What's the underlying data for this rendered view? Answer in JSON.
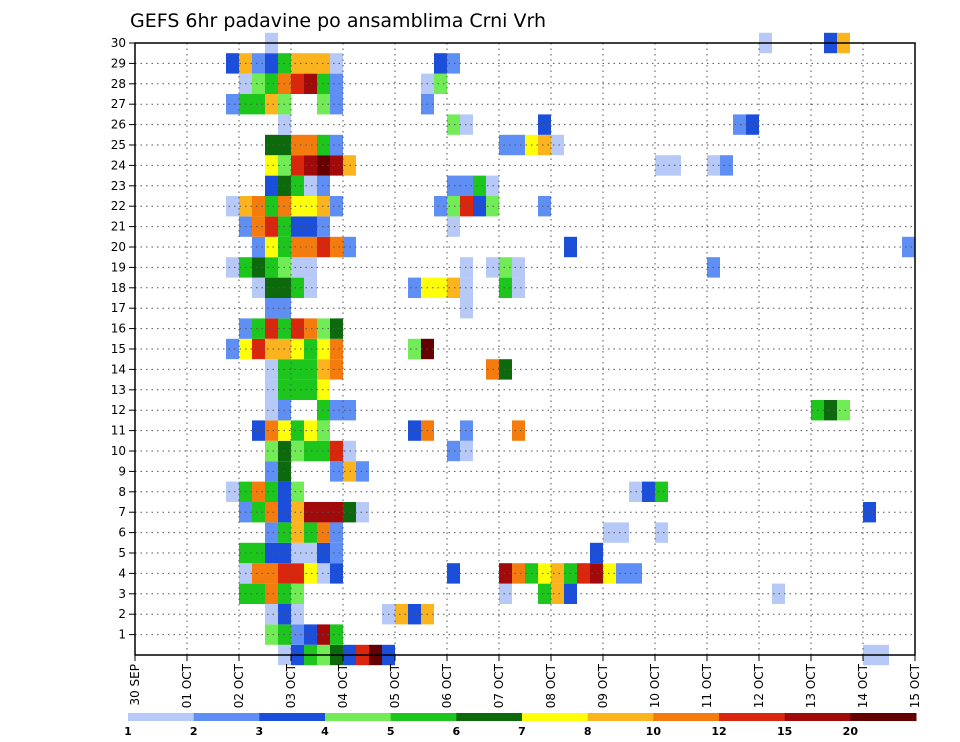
{
  "chart_data": {
    "type": "heatmap",
    "title": "GEFS 6hr padavine po ansamblima Crni Vrh",
    "xlabel": "",
    "ylabel": "",
    "x_tick_labels": [
      "30 SEP",
      "01 OCT",
      "02 OCT",
      "03 OCT",
      "04 OCT",
      "05 OCT",
      "06 OCT",
      "07 OCT",
      "08 OCT",
      "09 OCT",
      "10 OCT",
      "11 OCT",
      "12 OCT",
      "13 OCT",
      "14 OCT",
      "15 OCT"
    ],
    "x_unit": "6-hour step from 30 SEP",
    "xlim": [
      0,
      60
    ],
    "y_tick_labels": [
      "1",
      "2",
      "3",
      "4",
      "5",
      "6",
      "7",
      "8",
      "9",
      "10",
      "11",
      "12",
      "13",
      "14",
      "15",
      "16",
      "17",
      "18",
      "19",
      "20",
      "21",
      "22",
      "23",
      "24",
      "25",
      "26",
      "27",
      "28",
      "29",
      "30"
    ],
    "ylim": [
      0,
      30
    ],
    "grid": true,
    "colorbar": {
      "labels": [
        "1",
        "2",
        "3",
        "4",
        "5",
        "6",
        "7",
        "8",
        "10",
        "12",
        "15",
        "20"
      ],
      "colors": [
        "#b7c9f7",
        "#5f8ef4",
        "#1a4edb",
        "#72ec56",
        "#1dc61d",
        "#0c6a0c",
        "#ffff0a",
        "#fbb41d",
        "#f47c0e",
        "#db260e",
        "#a00a0a",
        "#650000"
      ]
    },
    "cells": [
      [
        11,
        0,
        0
      ],
      [
        12,
        0,
        2
      ],
      [
        13,
        0,
        4
      ],
      [
        14,
        0,
        3
      ],
      [
        15,
        0,
        5
      ],
      [
        16,
        0,
        2
      ],
      [
        17,
        0,
        9
      ],
      [
        18,
        0,
        11
      ],
      [
        19,
        0,
        2
      ],
      [
        56,
        0,
        0
      ],
      [
        57,
        0,
        0
      ],
      [
        10,
        1,
        3
      ],
      [
        11,
        1,
        4
      ],
      [
        12,
        1,
        1
      ],
      [
        13,
        1,
        2
      ],
      [
        14,
        1,
        10
      ],
      [
        15,
        1,
        4
      ],
      [
        10,
        2,
        0
      ],
      [
        11,
        2,
        2
      ],
      [
        12,
        2,
        0
      ],
      [
        19,
        2,
        0
      ],
      [
        20,
        2,
        7
      ],
      [
        21,
        2,
        2
      ],
      [
        22,
        2,
        7
      ],
      [
        8,
        3,
        4
      ],
      [
        9,
        3,
        4
      ],
      [
        10,
        3,
        8
      ],
      [
        11,
        3,
        4
      ],
      [
        12,
        3,
        3
      ],
      [
        28,
        3,
        0
      ],
      [
        31,
        3,
        4
      ],
      [
        32,
        3,
        7
      ],
      [
        33,
        3,
        2
      ],
      [
        49,
        3,
        0
      ],
      [
        8,
        4,
        0
      ],
      [
        9,
        4,
        8
      ],
      [
        10,
        4,
        8
      ],
      [
        11,
        4,
        9
      ],
      [
        12,
        4,
        9
      ],
      [
        13,
        4,
        6
      ],
      [
        14,
        4,
        0
      ],
      [
        15,
        4,
        2
      ],
      [
        24,
        4,
        2
      ],
      [
        28,
        4,
        10
      ],
      [
        29,
        4,
        8
      ],
      [
        30,
        4,
        4
      ],
      [
        31,
        4,
        6
      ],
      [
        32,
        4,
        7
      ],
      [
        33,
        4,
        4
      ],
      [
        34,
        4,
        9
      ],
      [
        35,
        4,
        10
      ],
      [
        36,
        4,
        6
      ],
      [
        37,
        4,
        1
      ],
      [
        38,
        4,
        1
      ],
      [
        8,
        5,
        4
      ],
      [
        9,
        5,
        4
      ],
      [
        10,
        5,
        2
      ],
      [
        11,
        5,
        2
      ],
      [
        12,
        5,
        0
      ],
      [
        13,
        5,
        0
      ],
      [
        14,
        5,
        2
      ],
      [
        15,
        5,
        1
      ],
      [
        35,
        5,
        2
      ],
      [
        10,
        6,
        1
      ],
      [
        11,
        6,
        4
      ],
      [
        12,
        6,
        7
      ],
      [
        13,
        6,
        4
      ],
      [
        14,
        6,
        8
      ],
      [
        15,
        6,
        1
      ],
      [
        36,
        6,
        0
      ],
      [
        37,
        6,
        0
      ],
      [
        40,
        6,
        0
      ],
      [
        8,
        7,
        1
      ],
      [
        9,
        7,
        4
      ],
      [
        10,
        7,
        8
      ],
      [
        11,
        7,
        2
      ],
      [
        12,
        7,
        7
      ],
      [
        13,
        7,
        10
      ],
      [
        14,
        7,
        10
      ],
      [
        15,
        7,
        10
      ],
      [
        16,
        7,
        5
      ],
      [
        17,
        7,
        0
      ],
      [
        56,
        7,
        2
      ],
      [
        7,
        8,
        0
      ],
      [
        8,
        8,
        4
      ],
      [
        9,
        8,
        8
      ],
      [
        10,
        8,
        4
      ],
      [
        11,
        8,
        2
      ],
      [
        12,
        8,
        3
      ],
      [
        38,
        8,
        0
      ],
      [
        39,
        8,
        2
      ],
      [
        40,
        8,
        4
      ],
      [
        10,
        9,
        1
      ],
      [
        11,
        9,
        5
      ],
      [
        15,
        9,
        1
      ],
      [
        16,
        9,
        7
      ],
      [
        17,
        9,
        1
      ],
      [
        10,
        10,
        3
      ],
      [
        11,
        10,
        5
      ],
      [
        12,
        10,
        3
      ],
      [
        13,
        10,
        4
      ],
      [
        14,
        10,
        4
      ],
      [
        15,
        10,
        9
      ],
      [
        16,
        10,
        0
      ],
      [
        24,
        10,
        1
      ],
      [
        25,
        10,
        0
      ],
      [
        9,
        11,
        2
      ],
      [
        10,
        11,
        8
      ],
      [
        11,
        11,
        6
      ],
      [
        12,
        11,
        4
      ],
      [
        13,
        11,
        6
      ],
      [
        14,
        11,
        3
      ],
      [
        21,
        11,
        2
      ],
      [
        22,
        11,
        8
      ],
      [
        25,
        11,
        1
      ],
      [
        29,
        11,
        8
      ],
      [
        10,
        12,
        0
      ],
      [
        11,
        12,
        1
      ],
      [
        14,
        12,
        4
      ],
      [
        15,
        12,
        1
      ],
      [
        16,
        12,
        1
      ],
      [
        52,
        12,
        4
      ],
      [
        53,
        12,
        5
      ],
      [
        54,
        12,
        3
      ],
      [
        10,
        13,
        0
      ],
      [
        11,
        13,
        4
      ],
      [
        12,
        13,
        4
      ],
      [
        13,
        13,
        4
      ],
      [
        14,
        13,
        6
      ],
      [
        10,
        14,
        0
      ],
      [
        11,
        14,
        4
      ],
      [
        12,
        14,
        4
      ],
      [
        13,
        14,
        4
      ],
      [
        14,
        14,
        7
      ],
      [
        15,
        14,
        8
      ],
      [
        27,
        14,
        8
      ],
      [
        28,
        14,
        5
      ],
      [
        7,
        15,
        1
      ],
      [
        8,
        15,
        6
      ],
      [
        9,
        15,
        9
      ],
      [
        10,
        15,
        7
      ],
      [
        11,
        15,
        7
      ],
      [
        12,
        15,
        6
      ],
      [
        13,
        15,
        4
      ],
      [
        14,
        15,
        6
      ],
      [
        15,
        15,
        8
      ],
      [
        21,
        15,
        3
      ],
      [
        22,
        15,
        11
      ],
      [
        8,
        16,
        1
      ],
      [
        9,
        16,
        4
      ],
      [
        10,
        16,
        9
      ],
      [
        11,
        16,
        4
      ],
      [
        12,
        16,
        9
      ],
      [
        13,
        16,
        8
      ],
      [
        14,
        16,
        3
      ],
      [
        15,
        16,
        5
      ],
      [
        10,
        17,
        1
      ],
      [
        11,
        17,
        1
      ],
      [
        25,
        17,
        0
      ],
      [
        9,
        18,
        0
      ],
      [
        10,
        18,
        5
      ],
      [
        11,
        18,
        5
      ],
      [
        12,
        18,
        4
      ],
      [
        13,
        18,
        0
      ],
      [
        21,
        18,
        1
      ],
      [
        22,
        18,
        6
      ],
      [
        23,
        18,
        6
      ],
      [
        24,
        18,
        7
      ],
      [
        25,
        18,
        0
      ],
      [
        28,
        18,
        4
      ],
      [
        29,
        18,
        0
      ],
      [
        7,
        19,
        0
      ],
      [
        8,
        19,
        4
      ],
      [
        9,
        19,
        5
      ],
      [
        10,
        19,
        4
      ],
      [
        11,
        19,
        3
      ],
      [
        12,
        19,
        0
      ],
      [
        13,
        19,
        0
      ],
      [
        25,
        19,
        0
      ],
      [
        27,
        19,
        0
      ],
      [
        28,
        19,
        3
      ],
      [
        29,
        19,
        0
      ],
      [
        44,
        19,
        1
      ],
      [
        9,
        20,
        1
      ],
      [
        10,
        20,
        6
      ],
      [
        11,
        20,
        4
      ],
      [
        12,
        20,
        8
      ],
      [
        13,
        20,
        8
      ],
      [
        14,
        20,
        9
      ],
      [
        15,
        20,
        8
      ],
      [
        16,
        20,
        1
      ],
      [
        33,
        20,
        2
      ],
      [
        59,
        20,
        1
      ],
      [
        8,
        21,
        1
      ],
      [
        9,
        21,
        8
      ],
      [
        10,
        21,
        9
      ],
      [
        11,
        21,
        4
      ],
      [
        12,
        21,
        2
      ],
      [
        13,
        21,
        2
      ],
      [
        14,
        21,
        1
      ],
      [
        24,
        21,
        0
      ],
      [
        7,
        22,
        0
      ],
      [
        8,
        22,
        7
      ],
      [
        9,
        22,
        8
      ],
      [
        10,
        22,
        4
      ],
      [
        11,
        22,
        8
      ],
      [
        12,
        22,
        6
      ],
      [
        13,
        22,
        6
      ],
      [
        14,
        22,
        7
      ],
      [
        15,
        22,
        1
      ],
      [
        23,
        22,
        1
      ],
      [
        24,
        22,
        3
      ],
      [
        25,
        22,
        9
      ],
      [
        26,
        22,
        2
      ],
      [
        27,
        22,
        3
      ],
      [
        31,
        22,
        1
      ],
      [
        10,
        23,
        2
      ],
      [
        11,
        23,
        5
      ],
      [
        12,
        23,
        4
      ],
      [
        13,
        23,
        0
      ],
      [
        14,
        23,
        1
      ],
      [
        24,
        23,
        1
      ],
      [
        25,
        23,
        1
      ],
      [
        26,
        23,
        4
      ],
      [
        27,
        23,
        0
      ],
      [
        10,
        24,
        6
      ],
      [
        11,
        24,
        3
      ],
      [
        12,
        24,
        9
      ],
      [
        13,
        24,
        10
      ],
      [
        14,
        24,
        11
      ],
      [
        15,
        24,
        10
      ],
      [
        16,
        24,
        7
      ],
      [
        40,
        24,
        0
      ],
      [
        41,
        24,
        0
      ],
      [
        44,
        24,
        0
      ],
      [
        45,
        24,
        1
      ],
      [
        10,
        25,
        5
      ],
      [
        11,
        25,
        5
      ],
      [
        12,
        25,
        8
      ],
      [
        13,
        25,
        8
      ],
      [
        14,
        25,
        4
      ],
      [
        15,
        25,
        1
      ],
      [
        28,
        25,
        1
      ],
      [
        29,
        25,
        1
      ],
      [
        30,
        25,
        6
      ],
      [
        31,
        25,
        7
      ],
      [
        32,
        25,
        0
      ],
      [
        11,
        26,
        0
      ],
      [
        24,
        26,
        3
      ],
      [
        25,
        26,
        0
      ],
      [
        31,
        26,
        2
      ],
      [
        46,
        26,
        1
      ],
      [
        47,
        26,
        2
      ],
      [
        7,
        27,
        1
      ],
      [
        8,
        27,
        4
      ],
      [
        9,
        27,
        4
      ],
      [
        10,
        27,
        7
      ],
      [
        11,
        27,
        3
      ],
      [
        14,
        27,
        3
      ],
      [
        15,
        27,
        1
      ],
      [
        22,
        27,
        1
      ],
      [
        8,
        28,
        0
      ],
      [
        9,
        28,
        3
      ],
      [
        10,
        28,
        4
      ],
      [
        11,
        28,
        8
      ],
      [
        12,
        28,
        9
      ],
      [
        13,
        28,
        10
      ],
      [
        14,
        28,
        4
      ],
      [
        15,
        28,
        1
      ],
      [
        22,
        28,
        0
      ],
      [
        23,
        28,
        3
      ],
      [
        7,
        29,
        2
      ],
      [
        8,
        29,
        7
      ],
      [
        9,
        29,
        1
      ],
      [
        10,
        29,
        2
      ],
      [
        11,
        29,
        4
      ],
      [
        12,
        29,
        7
      ],
      [
        13,
        29,
        7
      ],
      [
        14,
        29,
        7
      ],
      [
        15,
        29,
        0
      ],
      [
        23,
        29,
        2
      ],
      [
        24,
        29,
        1
      ],
      [
        10,
        30,
        0
      ],
      [
        48,
        30,
        0
      ],
      [
        53,
        30,
        2
      ],
      [
        54,
        30,
        7
      ]
    ]
  }
}
